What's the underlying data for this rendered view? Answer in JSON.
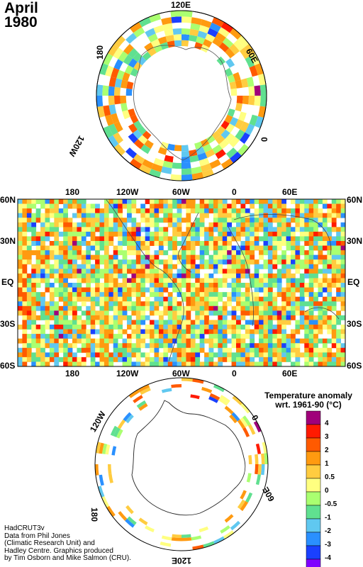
{
  "title": {
    "month": "April",
    "year": "1980"
  },
  "north_polar": {
    "labels": [
      "120E",
      "60E",
      "0",
      "120W",
      "180"
    ]
  },
  "equirect": {
    "top_labels": [
      "180",
      "120W",
      "60W",
      "0",
      "60E"
    ],
    "bottom_labels": [
      "180",
      "120W",
      "60W",
      "0",
      "60E"
    ],
    "left_labels": [
      "60N",
      "30N",
      "EQ",
      "30S",
      "60S"
    ],
    "right_labels": [
      "60N",
      "30N",
      "EQ",
      "30S",
      "60S"
    ]
  },
  "south_polar": {
    "labels": [
      "120W",
      "0",
      "180",
      "60E",
      "120E"
    ]
  },
  "legend": {
    "title_line1": "Temperature anomaly",
    "title_line2": "wrt. 1961-90  (°C)",
    "labels": [
      "4",
      "3",
      "2",
      "1",
      "0.5",
      "0",
      "-0.5",
      "-1",
      "-2",
      "-3",
      "-4"
    ],
    "colors": [
      "#a0007a",
      "#ff1a00",
      "#ff5a00",
      "#ff9a10",
      "#ffcc40",
      "#ffff80",
      "#aaff70",
      "#60e090",
      "#60c8f0",
      "#2a90ff",
      "#1a40ff",
      "#8000ff"
    ]
  },
  "credits": {
    "line1": "HadCRUT3v",
    "line2": "Data from Phil Jones",
    "line3": "(Climatic Research Unit) and",
    "line4": "Hadley Centre.  Graphics produced",
    "line5": "by Tim Osborn and Mike Salmon (CRU)."
  }
}
